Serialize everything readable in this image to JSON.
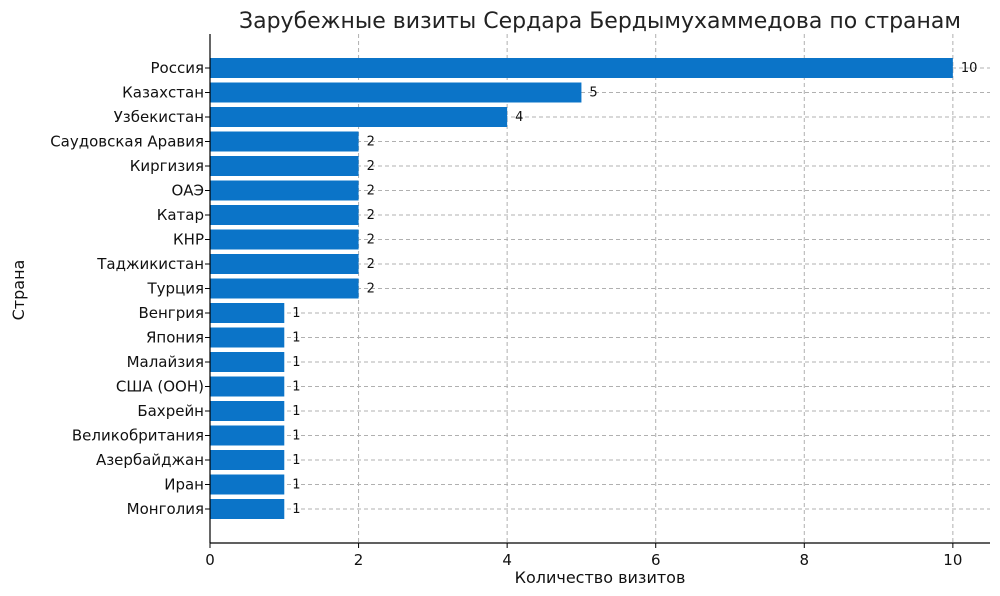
{
  "chart_data": {
    "type": "bar",
    "orientation": "horizontal",
    "title": "Зарубежные визиты Сердара Бердымухаммедова по странам",
    "xlabel": "Количество визитов",
    "ylabel": "Страна",
    "xlim": [
      0,
      10.5
    ],
    "xticks": [
      "0",
      "2",
      "4",
      "6",
      "8",
      "10"
    ],
    "grid": true,
    "bar_color": "#0b74c8",
    "categories": [
      "Россия",
      "Казахстан",
      "Узбекистан",
      "Саудовская Аравия",
      "Киргизия",
      "ОАЭ",
      "Катар",
      "КНР",
      "Таджикистан",
      "Турция",
      "Венгрия",
      "Япония",
      "Малайзия",
      "США (ООН)",
      "Бахрейн",
      "Великобритания",
      "Азербайджан",
      "Иран",
      "Монголия"
    ],
    "values": [
      10,
      5,
      4,
      2,
      2,
      2,
      2,
      2,
      2,
      2,
      1,
      1,
      1,
      1,
      1,
      1,
      1,
      1,
      1
    ]
  }
}
